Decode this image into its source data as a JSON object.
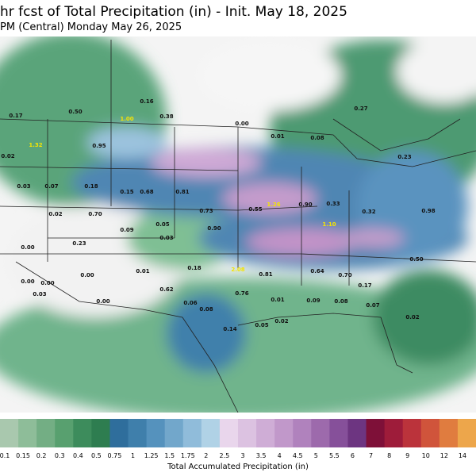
{
  "header": {
    "title": "hr fcst of Total Precipitation (in) - Init. May 18, 2025",
    "subtitle": "PM (Central) Monday May 26, 2025"
  },
  "map_labels": [
    "0.17",
    "0.50",
    "1.00",
    "0.16",
    "0.38",
    "0.27",
    "1.32",
    "0.95",
    "0.02",
    "0.03",
    "0.07",
    "0.18",
    "0.15",
    "0.68",
    "0.00",
    "0.01",
    "0.08",
    "0.23",
    "0.81",
    "0.73",
    "0.55",
    "1.26",
    "0.90",
    "0.33",
    "0.32",
    "0.98",
    "0.02",
    "0.70",
    "0.09",
    "0.05",
    "0.03",
    "0.90",
    "0.23",
    "0.00",
    "0.00",
    "0.01",
    "0.00",
    "0.62",
    "0.18",
    "2.08",
    "1.10",
    "0.50",
    "0.81",
    "0.64",
    "0.70",
    "0.00",
    "0.00",
    "0.03",
    "0.06",
    "0.08",
    "0.76",
    "0.01",
    "0.09",
    "0.08",
    "0.14",
    "0.05",
    "0.02",
    "0.17",
    "0.07",
    "0.02"
  ],
  "colorbar": {
    "labels": [
      "0.1",
      "0.15",
      "0.2",
      "0.3",
      "0.4",
      "0.5",
      "0.75",
      "1",
      "1.25",
      "1.5",
      "1.75",
      "2",
      "2.5",
      "3",
      "3.5",
      "4",
      "4.5",
      "5",
      "5.5",
      "6",
      "7",
      "8",
      "9",
      "10",
      "12",
      "14"
    ],
    "colors": [
      "#a9c8ae",
      "#8ebd99",
      "#73ae84",
      "#58a06f",
      "#3d8c5c",
      "#2e7d50",
      "#2f6e9c",
      "#3f7fab",
      "#5592bd",
      "#72a7cb",
      "#90bcda",
      "#b0d2e6",
      "#e9d6ec",
      "#dcc2e1",
      "#cfadd6",
      "#c198ca",
      "#b082bd",
      "#9d6aac",
      "#86509a",
      "#6d3581",
      "#7e1038",
      "#9e1c3a",
      "#bb333b",
      "#d0543b",
      "#e07c3f",
      "#eda64b"
    ],
    "label": "Total Accumulated Precipitation (in)"
  }
}
